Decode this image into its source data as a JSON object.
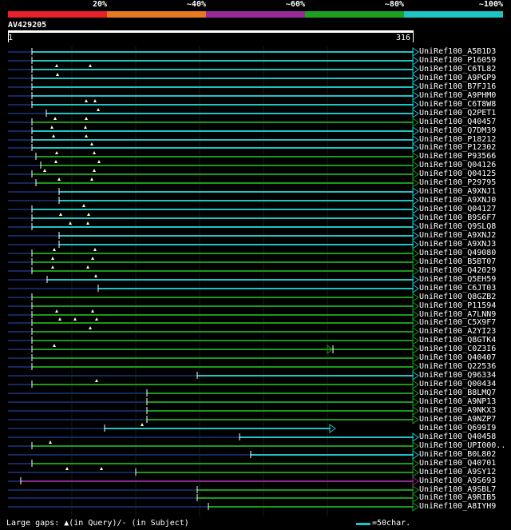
{
  "identity_legend": {
    "labels": [
      "20%",
      "~40%",
      "~60%",
      "~80%",
      "~100%"
    ],
    "colors": [
      "#e8202a",
      "#e67a20",
      "#9a2a9a",
      "#20a020",
      "#1ec3c3"
    ]
  },
  "query": {
    "name": "AV429205",
    "start": "1",
    "end": "316"
  },
  "colors": {
    "line_teal": "#1ec3c3",
    "line_green": "#1a9a1a",
    "line_purple": "#8a2a8a",
    "line_navy": "#142860"
  },
  "hits": [
    {
      "label": "UniRef100_A5B1D3",
      "color": "teal",
      "start": 40,
      "end": 518,
      "arrow": true,
      "gaps": []
    },
    {
      "label": "UniRef100_P16059",
      "color": "teal",
      "start": 40,
      "end": 518,
      "arrow": true,
      "gaps": []
    },
    {
      "label": "UniRef100_C6TL82",
      "color": "teal",
      "start": 40,
      "end": 518,
      "arrow": true,
      "gaps": [
        71,
        113
      ]
    },
    {
      "label": "UniRef100_A9PGP9",
      "color": "teal",
      "start": 40,
      "end": 518,
      "arrow": true,
      "gaps": [
        72
      ]
    },
    {
      "label": "UniRef100_B7FJ16",
      "color": "teal",
      "start": 40,
      "end": 518,
      "arrow": true,
      "gaps": []
    },
    {
      "label": "UniRef100_A9PHM0",
      "color": "teal",
      "start": 40,
      "end": 518,
      "arrow": true,
      "gaps": []
    },
    {
      "label": "UniRef100_C6T8W8",
      "color": "teal",
      "start": 40,
      "end": 518,
      "arrow": true,
      "gaps": [
        108,
        119
      ]
    },
    {
      "label": "UniRef100_Q2PET1",
      "color": "teal",
      "start": 58,
      "end": 518,
      "arrow": true,
      "gaps": [
        123
      ]
    },
    {
      "label": "UniRef100_Q40457",
      "color": "green",
      "start": 40,
      "end": 518,
      "arrow": true,
      "gaps": [
        69,
        108
      ]
    },
    {
      "label": "UniRef100_Q7DM39",
      "color": "teal",
      "start": 40,
      "end": 518,
      "arrow": true,
      "gaps": [
        65,
        107
      ]
    },
    {
      "label": "UniRef100_P18212",
      "color": "teal",
      "start": 40,
      "end": 518,
      "arrow": true,
      "gaps": [
        67,
        108
      ]
    },
    {
      "label": "UniRef100_P12302",
      "color": "teal",
      "start": 40,
      "end": 518,
      "arrow": true,
      "gaps": [
        115
      ]
    },
    {
      "label": "UniRef100_P93566",
      "color": "green",
      "start": 45,
      "end": 518,
      "arrow": true,
      "gaps": [
        71,
        118
      ]
    },
    {
      "label": "UniRef100_Q04126",
      "color": "green",
      "start": 51,
      "end": 518,
      "arrow": true,
      "gaps": [
        70,
        124
      ]
    },
    {
      "label": "UniRef100_Q04125",
      "color": "green",
      "start": 40,
      "end": 518,
      "arrow": true,
      "gaps": [
        56,
        118
      ]
    },
    {
      "label": "UniRef100_P29795",
      "color": "green",
      "start": 45,
      "end": 518,
      "arrow": true,
      "gaps": [
        74,
        115
      ]
    },
    {
      "label": "UniRef100_A9XNJ1",
      "color": "teal",
      "start": 74,
      "end": 518,
      "arrow": true,
      "gaps": []
    },
    {
      "label": "UniRef100_A9XNJ0",
      "color": "teal",
      "start": 74,
      "end": 518,
      "arrow": true,
      "gaps": []
    },
    {
      "label": "UniRef100_Q04127",
      "color": "teal",
      "start": 40,
      "end": 518,
      "arrow": true,
      "gaps": [
        105
      ]
    },
    {
      "label": "UniRef100_B9S6F7",
      "color": "teal",
      "start": 40,
      "end": 518,
      "arrow": true,
      "gaps": [
        76,
        111
      ]
    },
    {
      "label": "UniRef100_Q9SLQ8",
      "color": "teal",
      "start": 40,
      "end": 518,
      "arrow": true,
      "gaps": [
        88,
        110
      ]
    },
    {
      "label": "UniRef100_A9XNJ2",
      "color": "teal",
      "start": 74,
      "end": 518,
      "arrow": true,
      "gaps": []
    },
    {
      "label": "UniRef100_A9XNJ3",
      "color": "teal",
      "start": 74,
      "end": 518,
      "arrow": true,
      "gaps": []
    },
    {
      "label": "UniRef100_Q49080",
      "color": "green",
      "start": 40,
      "end": 518,
      "arrow": true,
      "gaps": [
        68,
        119
      ]
    },
    {
      "label": "UniRef100_B5BT07",
      "color": "green",
      "start": 40,
      "end": 518,
      "arrow": true,
      "gaps": [
        66,
        116
      ]
    },
    {
      "label": "UniRef100_Q42029",
      "color": "green",
      "start": 40,
      "end": 518,
      "arrow": true,
      "gaps": [
        66,
        110
      ]
    },
    {
      "label": "UniRef100_Q5EH59",
      "color": "teal",
      "start": 59,
      "end": 518,
      "arrow": true,
      "gaps": [
        120
      ]
    },
    {
      "label": "UniRef100_C6JT03",
      "color": "teal",
      "start": 123,
      "end": 518,
      "arrow": true,
      "gaps": []
    },
    {
      "label": "UniRef100_Q8GZB2",
      "color": "green",
      "start": 40,
      "end": 518,
      "arrow": true,
      "gaps": []
    },
    {
      "label": "UniRef100_P11594",
      "color": "green",
      "start": 40,
      "end": 518,
      "arrow": true,
      "gaps": []
    },
    {
      "label": "UniRef100_A7LNN9",
      "color": "green",
      "start": 40,
      "end": 518,
      "arrow": true,
      "gaps": [
        71,
        116
      ]
    },
    {
      "label": "UniRef100_C5X9F7",
      "color": "green",
      "start": 40,
      "end": 518,
      "arrow": true,
      "gaps": [
        75,
        94,
        121
      ]
    },
    {
      "label": "UniRef100_A2YI23",
      "color": "green",
      "start": 40,
      "end": 518,
      "arrow": true,
      "gaps": [
        113
      ]
    },
    {
      "label": "UniRef100_Q8GTK4",
      "color": "green",
      "start": 40,
      "end": 518,
      "arrow": true,
      "gaps": []
    },
    {
      "label": "UniRef100_C0Z3I6",
      "color": "green",
      "start": 40,
      "end": 518,
      "arrow": true,
      "gaps": [
        68
      ],
      "mid_arrow": 412
    },
    {
      "label": "UniRef100_Q40407",
      "color": "green",
      "start": 40,
      "end": 518,
      "arrow": true,
      "gaps": []
    },
    {
      "label": "UniRef100_Q22536",
      "color": "green",
      "start": 40,
      "end": 518,
      "arrow": true,
      "gaps": []
    },
    {
      "label": "UniRef100_Q96334",
      "color": "teal",
      "start": 247,
      "end": 518,
      "arrow": true,
      "gaps": []
    },
    {
      "label": "UniRef100_Q00434",
      "color": "green",
      "start": 40,
      "end": 518,
      "arrow": true,
      "gaps": [
        121
      ]
    },
    {
      "label": "UniRef100_B8LMQ7",
      "color": "green",
      "start": 184,
      "end": 518,
      "arrow": true,
      "gaps": []
    },
    {
      "label": "UniRef100_A9NP13",
      "color": "green",
      "start": 184,
      "end": 518,
      "arrow": true,
      "gaps": []
    },
    {
      "label": "UniRef100_A9NKX3",
      "color": "green",
      "start": 184,
      "end": 518,
      "arrow": true,
      "gaps": []
    },
    {
      "label": "UniRef100_A9NZP7",
      "color": "green",
      "start": 184,
      "end": 518,
      "arrow": true,
      "gaps": []
    },
    {
      "label": "UniRef100_Q699I9",
      "color": "teal",
      "start": 131,
      "end": 414,
      "arrow": true,
      "gaps": [
        178
      ]
    },
    {
      "label": "UniRef100_Q40458",
      "color": "teal",
      "start": 300,
      "end": 518,
      "arrow": true,
      "gaps": []
    },
    {
      "label": "UniRef100_UPI000..",
      "color": "green",
      "start": 40,
      "end": 518,
      "arrow": true,
      "gaps": [
        63
      ]
    },
    {
      "label": "UniRef100_B0L802",
      "color": "teal",
      "start": 314,
      "end": 518,
      "arrow": true,
      "gaps": []
    },
    {
      "label": "UniRef100_Q40701",
      "color": "green",
      "start": 40,
      "end": 518,
      "arrow": true,
      "gaps": []
    },
    {
      "label": "UniRef100_A9SY12",
      "color": "green",
      "start": 170,
      "end": 518,
      "arrow": true,
      "gaps": [
        84,
        127
      ]
    },
    {
      "label": "UniRef100_A9S693",
      "color": "purple",
      "start": 26,
      "end": 518,
      "arrow": true,
      "gaps": []
    },
    {
      "label": "UniRef100_A9SBL7",
      "color": "green",
      "start": 247,
      "end": 518,
      "arrow": true,
      "gaps": []
    },
    {
      "label": "UniRef100_A9RIB5",
      "color": "green",
      "start": 247,
      "end": 518,
      "arrow": true,
      "gaps": []
    },
    {
      "label": "UniRef100_A8IYH9",
      "color": "green",
      "start": 261,
      "end": 518,
      "arrow": true,
      "gaps": []
    }
  ],
  "footer": {
    "gap_legend": "Large gaps: ▲(in Query)/- (in Subject)",
    "scale_label": "=50char."
  }
}
